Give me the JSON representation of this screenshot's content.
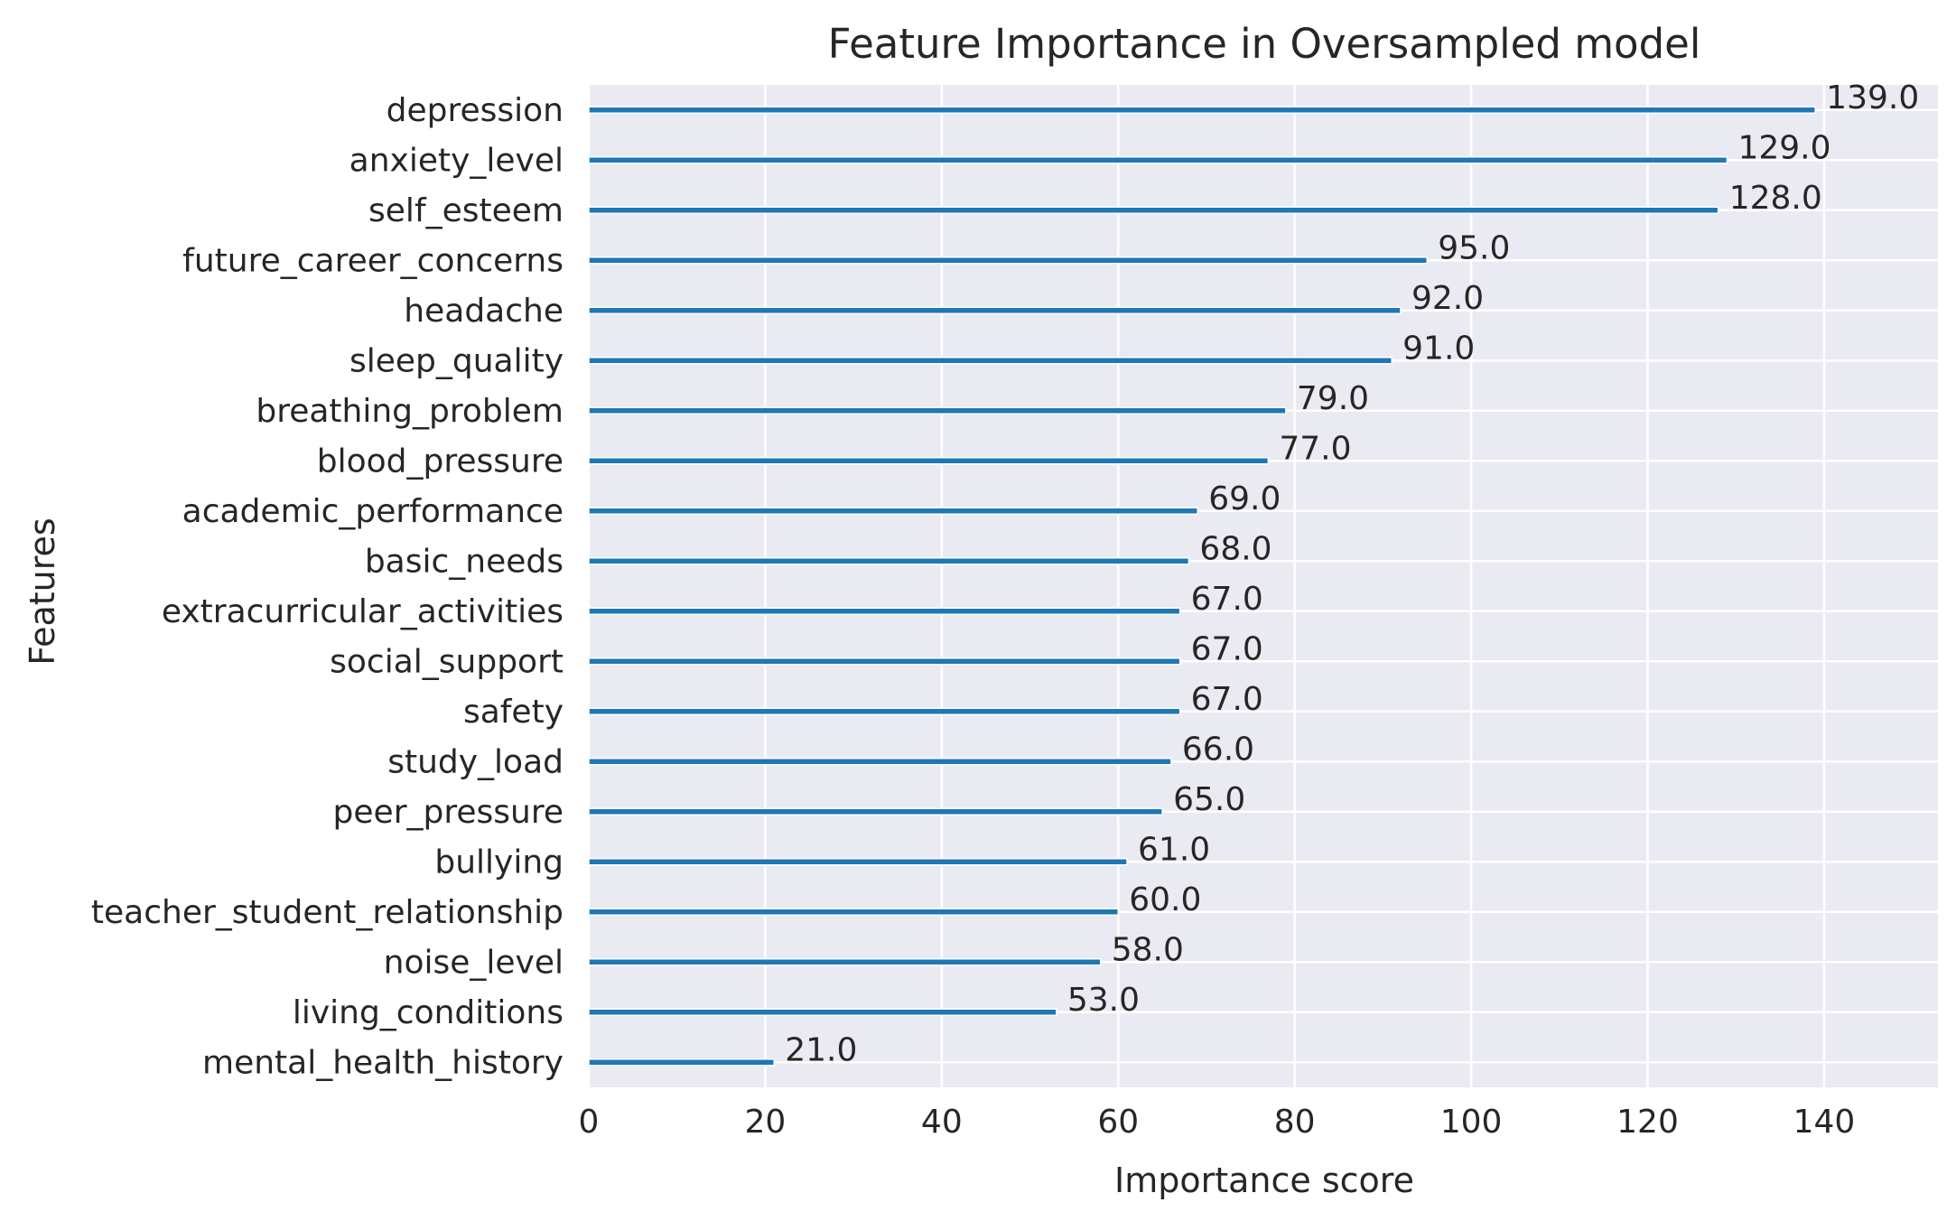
{
  "chart_data": {
    "type": "bar",
    "orientation": "horizontal",
    "title": "Feature Importance in Oversampled model",
    "xlabel": "Importance score",
    "ylabel": "Features",
    "categories": [
      "depression",
      "anxiety_level",
      "self_esteem",
      "future_career_concerns",
      "headache",
      "sleep_quality",
      "breathing_problem",
      "blood_pressure",
      "academic_performance",
      "basic_needs",
      "extracurricular_activities",
      "social_support",
      "safety",
      "study_load",
      "peer_pressure",
      "bullying",
      "teacher_student_relationship",
      "noise_level",
      "living_conditions",
      "mental_health_history"
    ],
    "values": [
      139,
      129,
      128,
      95,
      92,
      91,
      79,
      77,
      69,
      68,
      67,
      67,
      67,
      66,
      65,
      61,
      60,
      58,
      53,
      21
    ],
    "value_labels": [
      "139.0",
      "129.0",
      "128.0",
      "95.0",
      "92.0",
      "91.0",
      "79.0",
      "77.0",
      "69.0",
      "68.0",
      "67.0",
      "67.0",
      "67.0",
      "66.0",
      "65.0",
      "61.0",
      "60.0",
      "58.0",
      "53.0",
      "21.0"
    ],
    "xticks": [
      0,
      20,
      40,
      60,
      80,
      100,
      120,
      140
    ],
    "xtick_labels": [
      "0",
      "20",
      "40",
      "60",
      "80",
      "100",
      "120",
      "140"
    ],
    "xlim": [
      0,
      152.9
    ],
    "grid": true,
    "colors": {
      "bar": "#1f77b4",
      "plot_background": "#eaeaf2",
      "grid": "#ffffff",
      "text": "#262626"
    }
  }
}
